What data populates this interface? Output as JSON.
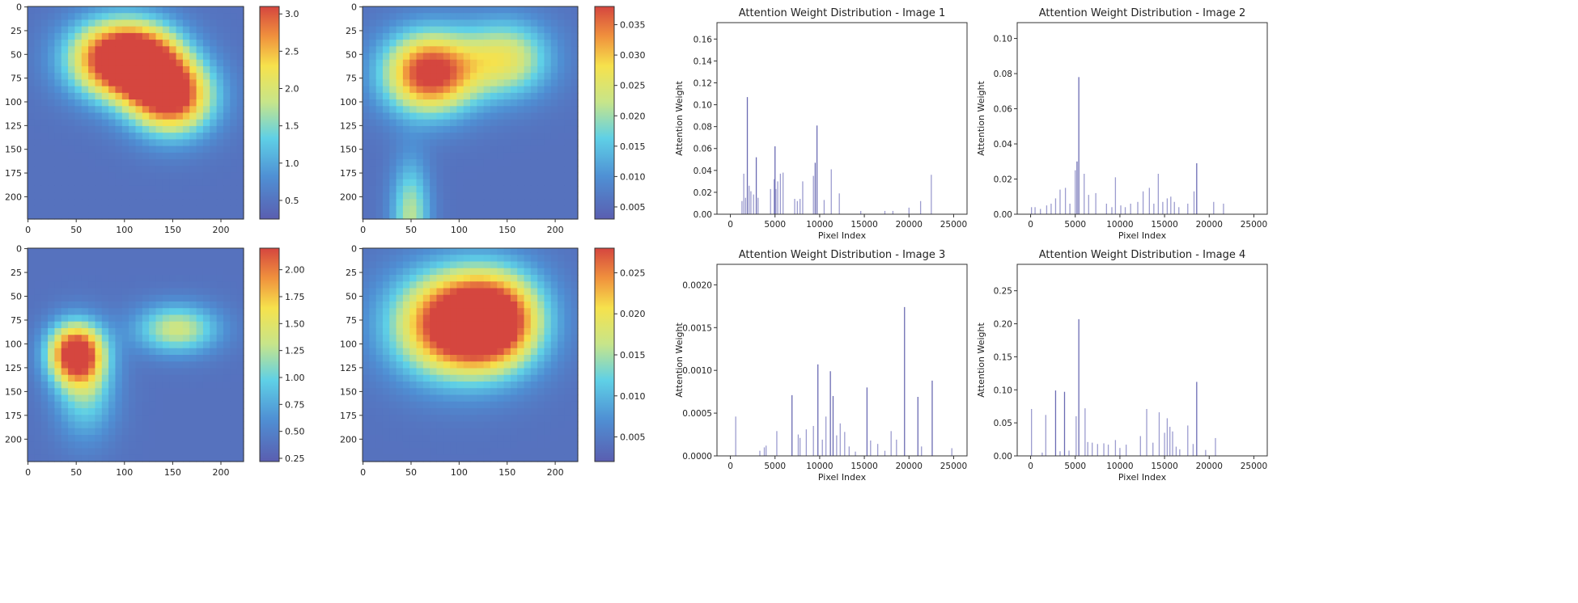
{
  "heatmaps": [
    {
      "type": "heatmap",
      "x_ticks": [
        "0",
        "50",
        "100",
        "150",
        "200"
      ],
      "y_ticks": [
        "0",
        "25",
        "50",
        "75",
        "100",
        "125",
        "150",
        "175",
        "200"
      ],
      "colorbar_ticks": [
        "0.5",
        "1.0",
        "1.5",
        "2.0",
        "2.5",
        "3.0"
      ],
      "colorbar_range": [
        0.25,
        3.1
      ],
      "hotspots": [
        {
          "x": 90,
          "y": 55,
          "sx": 34,
          "sy": 28,
          "w": 1.0
        },
        {
          "x": 150,
          "y": 95,
          "sx": 30,
          "sy": 28,
          "w": 0.95
        },
        {
          "x": 125,
          "y": 60,
          "sx": 28,
          "sy": 28,
          "w": 0.6
        }
      ]
    },
    {
      "type": "heatmap",
      "x_ticks": [
        "0",
        "50",
        "100",
        "150",
        "200"
      ],
      "y_ticks": [
        "0",
        "25",
        "50",
        "75",
        "100",
        "125",
        "150",
        "175",
        "200"
      ],
      "colorbar_ticks": [
        "0.005",
        "0.010",
        "0.015",
        "0.020",
        "0.025",
        "0.030",
        "0.035"
      ],
      "colorbar_range": [
        0.003,
        0.038
      ],
      "hotspots": [
        {
          "x": 70,
          "y": 70,
          "sx": 34,
          "sy": 30,
          "w": 1.0
        },
        {
          "x": 150,
          "y": 55,
          "sx": 32,
          "sy": 28,
          "w": 0.55
        },
        {
          "x": 50,
          "y": 220,
          "sx": 14,
          "sy": 40,
          "w": 0.45
        }
      ]
    },
    {
      "type": "heatmap",
      "x_ticks": [
        "0",
        "50",
        "100",
        "150",
        "200"
      ],
      "y_ticks": [
        "0",
        "25",
        "50",
        "75",
        "100",
        "125",
        "150",
        "175",
        "200"
      ],
      "colorbar_ticks": [
        "0.25",
        "0.50",
        "0.75",
        "1.00",
        "1.25",
        "1.50",
        "1.75",
        "2.00"
      ],
      "colorbar_range": [
        0.22,
        2.2
      ],
      "hotspots": [
        {
          "x": 50,
          "y": 110,
          "sx": 20,
          "sy": 22,
          "w": 1.0
        },
        {
          "x": 155,
          "y": 85,
          "sx": 30,
          "sy": 18,
          "w": 0.5
        },
        {
          "x": 60,
          "y": 150,
          "sx": 22,
          "sy": 35,
          "w": 0.35
        }
      ]
    },
    {
      "type": "heatmap",
      "x_ticks": [
        "0",
        "50",
        "100",
        "150",
        "200"
      ],
      "y_ticks": [
        "0",
        "25",
        "50",
        "75",
        "100",
        "125",
        "150",
        "175",
        "200"
      ],
      "colorbar_ticks": [
        "0.005",
        "0.010",
        "0.015",
        "0.020",
        "0.025"
      ],
      "colorbar_range": [
        0.002,
        0.028
      ],
      "hotspots": [
        {
          "x": 95,
          "y": 80,
          "sx": 45,
          "sy": 38,
          "w": 1.0
        },
        {
          "x": 140,
          "y": 75,
          "sx": 35,
          "sy": 35,
          "w": 0.75
        }
      ]
    }
  ],
  "chart_data": [
    {
      "type": "bar",
      "title": "Attention Weight Distribution - Image 1",
      "xlabel": "Pixel Index",
      "ylabel": "Attention Weight",
      "xlim": [
        -1500,
        26500
      ],
      "ylim": [
        0,
        0.175
      ],
      "x_ticks": [
        "0",
        "5000",
        "10000",
        "15000",
        "20000",
        "25000"
      ],
      "y_ticks": [
        "0.00",
        "0.02",
        "0.04",
        "0.06",
        "0.08",
        "0.10",
        "0.12",
        "0.14",
        "0.16"
      ],
      "x": [
        1300,
        1500,
        1700,
        1900,
        2100,
        2300,
        2600,
        2900,
        3100,
        4500,
        4900,
        5000,
        5100,
        5300,
        5600,
        5900,
        7200,
        7500,
        7800,
        8100,
        9300,
        9500,
        9700,
        10500,
        11300,
        12200,
        14600,
        17300,
        18200,
        20000,
        21300,
        22500
      ],
      "values": [
        0.012,
        0.037,
        0.015,
        0.107,
        0.026,
        0.021,
        0.018,
        0.052,
        0.015,
        0.023,
        0.032,
        0.062,
        0.023,
        0.03,
        0.037,
        0.038,
        0.014,
        0.012,
        0.014,
        0.03,
        0.035,
        0.047,
        0.081,
        0.013,
        0.041,
        0.019,
        0.003,
        0.003,
        0.003,
        0.006,
        0.012,
        0.036
      ]
    },
    {
      "type": "bar",
      "title": "Attention Weight Distribution - Image 2",
      "xlabel": "Pixel Index",
      "ylabel": "Attention Weight",
      "xlim": [
        -1500,
        26500
      ],
      "ylim": [
        0,
        0.109
      ],
      "x_ticks": [
        "0",
        "5000",
        "10000",
        "15000",
        "20000",
        "25000"
      ],
      "y_ticks": [
        "0.00",
        "0.02",
        "0.04",
        "0.06",
        "0.08",
        "0.10"
      ],
      "x": [
        100,
        500,
        1100,
        1800,
        2300,
        2800,
        3300,
        3900,
        4400,
        5000,
        5200,
        5400,
        6000,
        6500,
        7300,
        8500,
        9100,
        9500,
        10100,
        10600,
        11200,
        12000,
        12600,
        13300,
        13800,
        14300,
        14800,
        15300,
        15700,
        16100,
        16600,
        17600,
        18300,
        18600,
        20500,
        21600
      ],
      "values": [
        0.004,
        0.004,
        0.003,
        0.005,
        0.006,
        0.009,
        0.014,
        0.015,
        0.006,
        0.025,
        0.03,
        0.078,
        0.023,
        0.011,
        0.012,
        0.006,
        0.004,
        0.021,
        0.005,
        0.004,
        0.006,
        0.007,
        0.013,
        0.015,
        0.006,
        0.023,
        0.007,
        0.009,
        0.01,
        0.007,
        0.004,
        0.006,
        0.013,
        0.029,
        0.007,
        0.006
      ]
    },
    {
      "type": "bar",
      "title": "Attention Weight Distribution - Image 3",
      "xlabel": "Pixel Index",
      "ylabel": "Attention Weight",
      "xlim": [
        -1500,
        26500
      ],
      "ylim": [
        0,
        0.00224
      ],
      "x_ticks": [
        "0",
        "5000",
        "10000",
        "15000",
        "20000",
        "25000"
      ],
      "y_ticks": [
        "0.0000",
        "0.0005",
        "0.0010",
        "0.0015",
        "0.0020"
      ],
      "x": [
        600,
        3300,
        3800,
        4000,
        5200,
        6900,
        7600,
        7800,
        8500,
        9300,
        9800,
        10300,
        10700,
        11200,
        11500,
        11900,
        12300,
        12800,
        13300,
        14000,
        15300,
        15700,
        16500,
        17300,
        18000,
        18600,
        19500,
        21000,
        21400,
        22600,
        24800
      ],
      "values": [
        0.00046,
        6e-05,
        0.0001,
        0.00012,
        0.00029,
        0.00071,
        0.00025,
        0.00021,
        0.00031,
        0.00035,
        0.00107,
        0.00019,
        0.00046,
        0.00099,
        0.0007,
        0.00024,
        0.00038,
        0.00028,
        0.00011,
        5e-05,
        0.0008,
        0.00018,
        0.00014,
        6e-05,
        0.00029,
        0.00019,
        0.00174,
        0.00069,
        0.00011,
        0.00088,
        9e-05
      ]
    },
    {
      "type": "bar",
      "title": "Attention Weight Distribution - Image 4",
      "xlabel": "Pixel Index",
      "ylabel": "Attention Weight",
      "xlim": [
        -1500,
        26500
      ],
      "ylim": [
        0,
        0.29
      ],
      "x_ticks": [
        "0",
        "5000",
        "10000",
        "15000",
        "20000",
        "25000"
      ],
      "y_ticks": [
        "0.00",
        "0.05",
        "0.10",
        "0.15",
        "0.20",
        "0.25"
      ],
      "x": [
        100,
        1300,
        1700,
        2800,
        3300,
        3800,
        4300,
        5100,
        5400,
        6100,
        6400,
        6900,
        7500,
        8200,
        8700,
        9500,
        10000,
        10700,
        12300,
        13000,
        13700,
        14400,
        15000,
        15300,
        15600,
        15900,
        16300,
        16700,
        17600,
        18200,
        18600,
        19600,
        20700
      ],
      "values": [
        0.071,
        0.005,
        0.062,
        0.099,
        0.007,
        0.097,
        0.008,
        0.06,
        0.207,
        0.072,
        0.021,
        0.02,
        0.018,
        0.019,
        0.017,
        0.024,
        0.012,
        0.017,
        0.03,
        0.071,
        0.02,
        0.066,
        0.035,
        0.057,
        0.044,
        0.037,
        0.014,
        0.01,
        0.046,
        0.018,
        0.112,
        0.009,
        0.027
      ]
    }
  ]
}
